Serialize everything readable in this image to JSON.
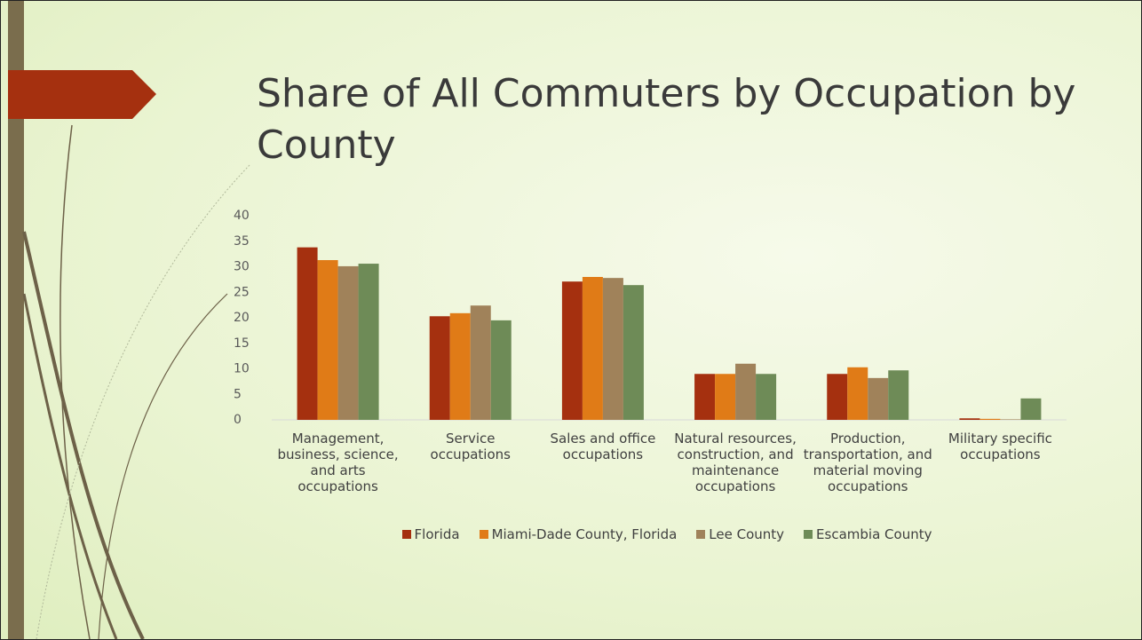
{
  "chart_data": {
    "type": "bar",
    "title": "Share of All Commuters by Occupation by County",
    "categories": [
      "Management, business, science, and arts occupations",
      "Service occupations",
      "Sales and office occupations",
      "Natural resources, construction, and maintenance occupations",
      "Production, transportation, and material moving occupations",
      "Military specific occupations"
    ],
    "series": [
      {
        "name": "Florida",
        "color": "#a5300f",
        "values": [
          33.8,
          20.3,
          27.1,
          9.0,
          9.0,
          0.3
        ]
      },
      {
        "name": "Miami-Dade County, Florida",
        "color": "#e07b17",
        "values": [
          31.3,
          20.9,
          28.0,
          9.0,
          10.3,
          0.2
        ]
      },
      {
        "name": "Lee County",
        "color": "#a0825a",
        "values": [
          30.1,
          22.4,
          27.8,
          11.0,
          8.2,
          0.1
        ]
      },
      {
        "name": "Escambia County",
        "color": "#6e8b57",
        "values": [
          30.6,
          19.5,
          26.4,
          9.0,
          9.7,
          4.2
        ]
      }
    ],
    "ylim": [
      0,
      40
    ],
    "yticks": [
      0,
      5,
      10,
      15,
      20,
      25,
      30,
      35,
      40
    ],
    "grid": false,
    "legend": "bottom"
  }
}
